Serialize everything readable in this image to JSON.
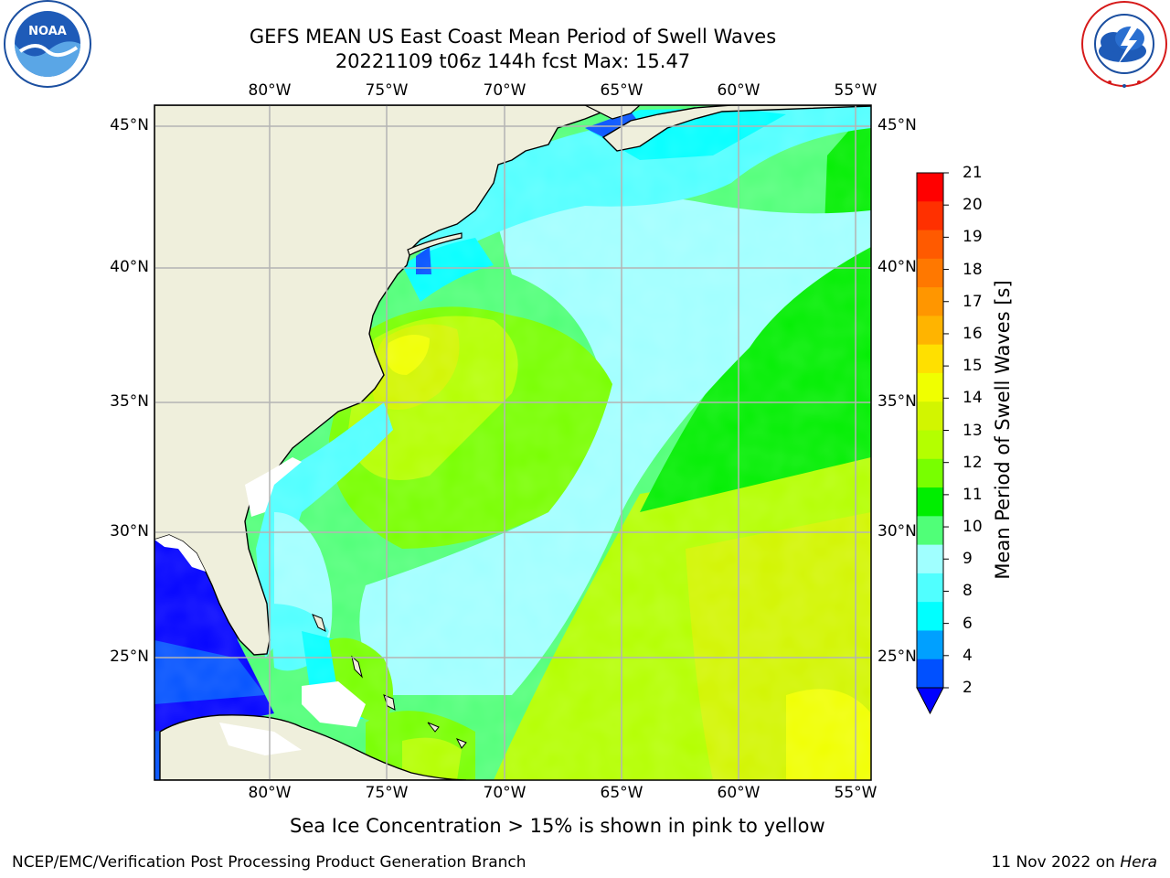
{
  "header": {
    "title_line1": "GEFS MEAN US East Coast Mean Period of Swell Waves",
    "title_line2": "20221109 t06z 144h fcst   Max: 15.47"
  },
  "logos": {
    "left": "NOAA",
    "left_ring_text": "NATIONAL OCEANIC AND ATMOSPHERIC ADMINISTRATION · U.S. DEPARTMENT OF COMMERCE",
    "right_ring_text": "NATIONAL WEATHER SERVICE"
  },
  "map": {
    "lon_labels": [
      "80°W",
      "75°W",
      "70°W",
      "65°W",
      "60°W",
      "55°W"
    ],
    "lat_labels": [
      "45°N",
      "40°N",
      "35°N",
      "30°N",
      "25°N"
    ],
    "land_color": "#efefdc",
    "grid_color": "#b4b4b4"
  },
  "colorbar": {
    "label": "Mean Period of Swell Waves [s]",
    "ticks": [
      "21",
      "20",
      "19",
      "18",
      "17",
      "16",
      "15",
      "14",
      "13",
      "12",
      "11",
      "10",
      "9",
      "8",
      "6",
      "4",
      "2"
    ],
    "colors": [
      "#ff0000",
      "#ff3000",
      "#ff5a00",
      "#ff7800",
      "#ff9600",
      "#ffb400",
      "#ffe000",
      "#f0ff00",
      "#d2f500",
      "#b4ff00",
      "#78ff00",
      "#00ee00",
      "#50ff78",
      "#a0ffff",
      "#50ffff",
      "#00ffff",
      "#00a0ff",
      "#0050ff",
      "#0000ff"
    ]
  },
  "subtitle": "Sea Ice Concentration > 15% is shown in pink to yellow",
  "footer": {
    "left": "NCEP/EMC/Verification Post Processing Product Generation Branch",
    "right_date": "11 Nov 2022 on ",
    "right_host": "Hera"
  }
}
